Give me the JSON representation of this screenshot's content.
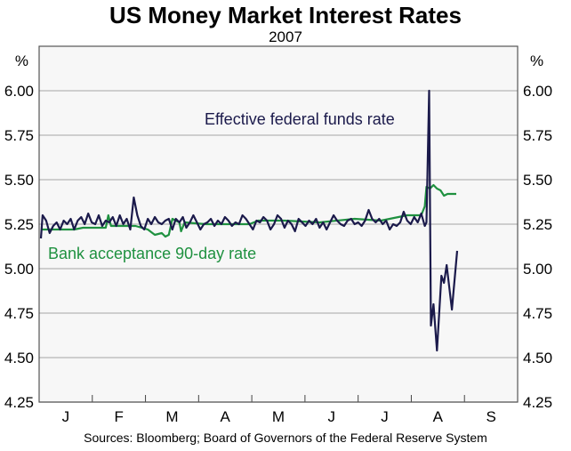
{
  "chart_data": {
    "type": "line",
    "title": "US Money Market Interest Rates",
    "subtitle": "2007",
    "ylabel_left": "%",
    "ylabel_right": "%",
    "ylim": [
      4.25,
      6.25
    ],
    "yticks": [
      "4.25",
      "4.50",
      "4.75",
      "5.00",
      "5.25",
      "5.50",
      "5.75",
      "6.00"
    ],
    "xlim_days": [
      0,
      273
    ],
    "xtick_labels": [
      "J",
      "F",
      "M",
      "A",
      "M",
      "J",
      "J",
      "A",
      "S"
    ],
    "grid": true,
    "source": "Sources: Bloomberg; Board of Governors of the Federal Reserve System",
    "series": [
      {
        "name": "Effective federal funds rate",
        "color": "#1b1a4b",
        "x": [
          1,
          2,
          4,
          6,
          8,
          10,
          12,
          14,
          16,
          18,
          20,
          22,
          24,
          26,
          28,
          30,
          32,
          34,
          36,
          38,
          40,
          42,
          44,
          46,
          48,
          50,
          52,
          54,
          56,
          58,
          60,
          62,
          64,
          66,
          68,
          70,
          72,
          74,
          76,
          78,
          80,
          82,
          84,
          86,
          88,
          90,
          92,
          94,
          96,
          98,
          100,
          102,
          104,
          106,
          108,
          110,
          112,
          114,
          116,
          118,
          120,
          122,
          124,
          126,
          128,
          130,
          132,
          134,
          136,
          138,
          140,
          142,
          144,
          146,
          148,
          150,
          152,
          154,
          156,
          158,
          160,
          162,
          164,
          166,
          168,
          170,
          172,
          174,
          176,
          178,
          180,
          182,
          184,
          186,
          188,
          190,
          192,
          194,
          196,
          198,
          200,
          202,
          204,
          206,
          208,
          210,
          212,
          214,
          216,
          218,
          220,
          221,
          222.5,
          223.5,
          225,
          227,
          229.5,
          231,
          232.5,
          235.5,
          238.5
        ],
        "y": [
          5.17,
          5.3,
          5.27,
          5.2,
          5.24,
          5.26,
          5.22,
          5.27,
          5.25,
          5.28,
          5.22,
          5.27,
          5.29,
          5.25,
          5.31,
          5.26,
          5.25,
          5.3,
          5.24,
          5.27,
          5.26,
          5.29,
          5.24,
          5.3,
          5.25,
          5.28,
          5.22,
          5.4,
          5.3,
          5.24,
          5.22,
          5.28,
          5.25,
          5.29,
          5.26,
          5.25,
          5.27,
          5.28,
          5.22,
          5.28,
          5.26,
          5.29,
          5.23,
          5.26,
          5.3,
          5.26,
          5.22,
          5.25,
          5.26,
          5.28,
          5.24,
          5.27,
          5.25,
          5.29,
          5.27,
          5.24,
          5.26,
          5.25,
          5.3,
          5.28,
          5.25,
          5.22,
          5.27,
          5.26,
          5.29,
          5.27,
          5.22,
          5.25,
          5.3,
          5.28,
          5.23,
          5.27,
          5.25,
          5.21,
          5.28,
          5.26,
          5.24,
          5.27,
          5.25,
          5.28,
          5.23,
          5.26,
          5.22,
          5.26,
          5.3,
          5.27,
          5.25,
          5.24,
          5.27,
          5.28,
          5.25,
          5.26,
          5.24,
          5.27,
          5.33,
          5.28,
          5.26,
          5.28,
          5.25,
          5.27,
          5.22,
          5.25,
          5.24,
          5.26,
          5.32,
          5.27,
          5.25,
          5.29,
          5.26,
          5.31,
          5.24,
          5.26,
          6.0,
          4.68,
          4.8,
          4.54,
          4.96,
          4.92,
          5.02,
          4.77,
          5.1
        ],
        "label": "Effective federal funds rate"
      },
      {
        "name": "Bank acceptance 90-day rate",
        "color": "#1f9140",
        "x": [
          1,
          20,
          25,
          38,
          39.5,
          41,
          45,
          55,
          62,
          66,
          70,
          72,
          74,
          76,
          78,
          80,
          81,
          83,
          95,
          120,
          125,
          140,
          160,
          180,
          195,
          210,
          218,
          220,
          221,
          223,
          225,
          227,
          229,
          231,
          233,
          238
        ],
        "y": [
          5.22,
          5.22,
          5.23,
          5.23,
          5.3,
          5.24,
          5.24,
          5.24,
          5.22,
          5.19,
          5.2,
          5.18,
          5.19,
          5.28,
          5.27,
          5.26,
          5.21,
          5.26,
          5.25,
          5.25,
          5.27,
          5.27,
          5.26,
          5.28,
          5.27,
          5.3,
          5.3,
          5.35,
          5.46,
          5.45,
          5.47,
          5.45,
          5.44,
          5.41,
          5.42,
          5.42
        ],
        "label": "Bank acceptance 90-day rate"
      }
    ]
  }
}
